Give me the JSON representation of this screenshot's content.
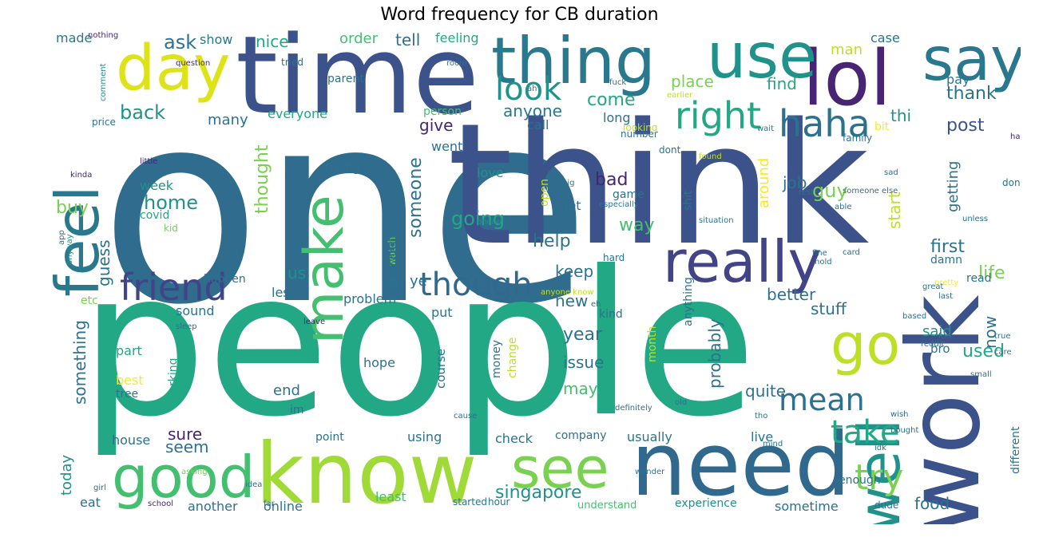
{
  "title": "Word frequency for CB duration",
  "palette": {
    "dark_purple": "#482475",
    "indigo": "#414487",
    "steel_blue": "#2f6c8e",
    "teal_blue": "#2a788e",
    "teal": "#21918c",
    "sea_green": "#22a884",
    "green": "#44bf70",
    "light_green": "#7ad151",
    "lime": "#bddf26",
    "yellow": "#fde725"
  },
  "words": [
    {
      "text": "one",
      "c": "#2f6c8e"
    },
    {
      "text": "people",
      "c": "#22a884"
    },
    {
      "text": "think",
      "c": "#3b528b"
    },
    {
      "text": "time",
      "c": "#3b528b"
    },
    {
      "text": "know",
      "c": "#a0da39"
    },
    {
      "text": "work",
      "c": "#3b528b"
    },
    {
      "text": "need",
      "c": "#31688e"
    },
    {
      "text": "thing",
      "c": "#2a788e"
    },
    {
      "text": "lol",
      "c": "#482475"
    },
    {
      "text": "use",
      "c": "#21918c"
    },
    {
      "text": "say",
      "c": "#2a788e"
    },
    {
      "text": "day",
      "c": "#dde318"
    },
    {
      "text": "feel",
      "c": "#2a788e"
    },
    {
      "text": "good",
      "c": "#44bf70"
    },
    {
      "text": "see",
      "c": "#7ad151"
    },
    {
      "text": "make",
      "c": "#44bf70"
    },
    {
      "text": "really",
      "c": "#414487"
    },
    {
      "text": "well",
      "c": "#21918c"
    },
    {
      "text": "go",
      "c": "#bddf26"
    },
    {
      "text": "haha",
      "c": "#2c728e"
    },
    {
      "text": "right",
      "c": "#22a884"
    },
    {
      "text": "friend",
      "c": "#414487"
    },
    {
      "text": "though",
      "c": "#31688e"
    },
    {
      "text": "look",
      "c": "#21918c"
    },
    {
      "text": "mean",
      "c": "#2c728e"
    },
    {
      "text": "take",
      "c": "#22a884"
    },
    {
      "text": "try",
      "c": "#7ad151"
    },
    {
      "text": "singapore",
      "c": "#21918c"
    },
    {
      "text": "back",
      "c": "#21918c"
    },
    {
      "text": "give",
      "c": "#482475"
    },
    {
      "text": "come",
      "c": "#22a884"
    },
    {
      "text": "anyone",
      "c": "#2a788e"
    },
    {
      "text": "place",
      "c": "#7ad151"
    },
    {
      "text": "find",
      "c": "#22a884"
    },
    {
      "text": "thank",
      "c": "#2c728e"
    },
    {
      "text": "post",
      "c": "#3b528b"
    },
    {
      "text": "ask",
      "c": "#2c728e"
    },
    {
      "text": "show",
      "c": "#2a788e"
    },
    {
      "text": "nice",
      "c": "#22a884"
    },
    {
      "text": "order",
      "c": "#44bf70"
    },
    {
      "text": "tell",
      "c": "#2c728e"
    },
    {
      "text": "feeling",
      "c": "#22a884"
    },
    {
      "text": "made",
      "c": "#2a788e"
    },
    {
      "text": "man",
      "c": "#bddf26"
    },
    {
      "text": "case",
      "c": "#2c728e"
    },
    {
      "text": "many",
      "c": "#2c728e"
    },
    {
      "text": "everyone",
      "c": "#22a884"
    },
    {
      "text": "person",
      "c": "#44bf70"
    },
    {
      "text": "call",
      "c": "#2c728e"
    },
    {
      "text": "long",
      "c": "#2c728e"
    },
    {
      "text": "thi",
      "c": "#21918c"
    },
    {
      "text": "pay",
      "c": "#2c728e"
    },
    {
      "text": "buy",
      "c": "#7ad151"
    },
    {
      "text": "home",
      "c": "#21918c"
    },
    {
      "text": "week",
      "c": "#21918c"
    },
    {
      "text": "thought",
      "c": "#7ad151"
    },
    {
      "text": "bad",
      "c": "#482475"
    },
    {
      "text": "guy",
      "c": "#7ad151"
    },
    {
      "text": "job",
      "c": "#2c728e"
    },
    {
      "text": "start",
      "c": "#bddf26"
    },
    {
      "text": "getting",
      "c": "#2c728e"
    },
    {
      "text": "going",
      "c": "#22a884"
    },
    {
      "text": "someone",
      "c": "#2c728e"
    },
    {
      "text": "around",
      "c": "#fde725"
    },
    {
      "text": "guess",
      "c": "#2c728e"
    },
    {
      "text": "help",
      "c": "#2c728e"
    },
    {
      "text": "way",
      "c": "#44bf70"
    },
    {
      "text": "first",
      "c": "#2c728e"
    },
    {
      "text": "life",
      "c": "#7ad151"
    },
    {
      "text": "something",
      "c": "#2c728e"
    },
    {
      "text": "us",
      "c": "#21918c"
    },
    {
      "text": "sg",
      "c": "#2c728e"
    },
    {
      "text": "ye",
      "c": "#2c728e"
    },
    {
      "text": "keep",
      "c": "#2c728e"
    },
    {
      "text": "better",
      "c": "#2c728e"
    },
    {
      "text": "new",
      "c": "#2c728e"
    },
    {
      "text": "stuff",
      "c": "#2c728e"
    },
    {
      "text": "now",
      "c": "#2c728e"
    },
    {
      "text": "said",
      "c": "#21918c"
    },
    {
      "text": "used",
      "c": "#22a884"
    },
    {
      "text": "probably",
      "c": "#2c728e"
    },
    {
      "text": "year",
      "c": "#2c728e"
    },
    {
      "text": "issue",
      "c": "#2c728e"
    },
    {
      "text": "may",
      "c": "#44bf70"
    },
    {
      "text": "quite",
      "c": "#2c728e"
    },
    {
      "text": "end",
      "c": "#2c728e"
    },
    {
      "text": "sure",
      "c": "#482475"
    },
    {
      "text": "seem",
      "c": "#2c728e"
    },
    {
      "text": "today",
      "c": "#21918c"
    },
    {
      "text": "food",
      "c": "#2c728e"
    },
    {
      "text": "sound",
      "c": "#2c728e"
    },
    {
      "text": "problem",
      "c": "#2c728e"
    },
    {
      "text": "hope",
      "c": "#2c728e"
    },
    {
      "text": "course",
      "c": "#2c728e"
    },
    {
      "text": "love",
      "c": "#21918c"
    },
    {
      "text": "trying",
      "c": "#2c728e"
    },
    {
      "text": "covid",
      "c": "#22a884"
    },
    {
      "text": "part",
      "c": "#22a884"
    },
    {
      "text": "best",
      "c": "#fde725"
    },
    {
      "text": "house",
      "c": "#2c728e"
    },
    {
      "text": "another",
      "c": "#2c728e"
    },
    {
      "text": "online",
      "c": "#2c728e"
    },
    {
      "text": "least",
      "c": "#44bf70"
    },
    {
      "text": "using",
      "c": "#2c728e"
    },
    {
      "text": "check",
      "c": "#2c728e"
    },
    {
      "text": "company",
      "c": "#2c728e"
    },
    {
      "text": "usually",
      "c": "#2c728e"
    },
    {
      "text": "live",
      "c": "#2c728e"
    },
    {
      "text": "enough",
      "c": "#2c728e"
    },
    {
      "text": "sometime",
      "c": "#2c728e"
    },
    {
      "text": "experience",
      "c": "#21918c"
    },
    {
      "text": "understand",
      "c": "#44bf70"
    },
    {
      "text": "eat",
      "c": "#2c728e"
    },
    {
      "text": "went",
      "c": "#2c728e"
    },
    {
      "text": "different",
      "c": "#2c728e"
    },
    {
      "text": "play",
      "c": "#2c728e"
    },
    {
      "text": "read",
      "c": "#2c728e"
    },
    {
      "text": "damn",
      "c": "#2c728e"
    },
    {
      "text": "bro",
      "c": "#2c728e"
    },
    {
      "text": "working",
      "c": "#22a884"
    },
    {
      "text": "money",
      "c": "#2c728e"
    },
    {
      "text": "change",
      "c": "#bddf26"
    },
    {
      "text": "month",
      "c": "#bddf26"
    },
    {
      "text": "anything",
      "c": "#2c728e"
    },
    {
      "text": "shit",
      "c": "#2c728e"
    },
    {
      "text": "game",
      "c": "#2c728e"
    },
    {
      "text": "let",
      "c": "#2c728e"
    },
    {
      "text": "open",
      "c": "#bddf26"
    },
    {
      "text": "etc",
      "c": "#7ad151"
    },
    {
      "text": "less",
      "c": "#2c728e"
    },
    {
      "text": "put",
      "c": "#2c728e"
    },
    {
      "text": "happen",
      "c": "#2c728e"
    },
    {
      "text": "cb",
      "c": "#2c728e"
    },
    {
      "text": "im",
      "c": "#2c728e"
    },
    {
      "text": "kid",
      "c": "#7ad151"
    },
    {
      "text": "tried",
      "c": "#2c728e"
    },
    {
      "text": "parent",
      "c": "#2c728e"
    },
    {
      "text": "price",
      "c": "#2c728e"
    },
    {
      "text": "bit",
      "c": "#fde725"
    },
    {
      "text": "family",
      "c": "#2c728e"
    },
    {
      "text": "dont",
      "c": "#2c728e"
    },
    {
      "text": "number",
      "c": "#2c728e"
    },
    {
      "text": "looking",
      "c": "#bddf26"
    },
    {
      "text": "done",
      "c": "#2c728e"
    },
    {
      "text": "watch",
      "c": "#7ad151"
    },
    {
      "text": "point",
      "c": "#2c728e"
    },
    {
      "text": "hard",
      "c": "#2c728e"
    },
    {
      "text": "hahaha",
      "c": "#482475"
    },
    {
      "text": "question",
      "c": "#482475"
    },
    {
      "text": "little",
      "c": "#482475"
    },
    {
      "text": "kinda",
      "c": "#482475"
    },
    {
      "text": "anyway",
      "c": "#21918c"
    },
    {
      "text": "big",
      "c": "#2c728e"
    },
    {
      "text": "found",
      "c": "#bddf26"
    },
    {
      "text": "room",
      "c": "#2c728e"
    },
    {
      "text": "able",
      "c": "#2c728e"
    },
    {
      "text": "pretty",
      "c": "#fde725"
    },
    {
      "text": "great",
      "c": "#2c728e"
    },
    {
      "text": "unless",
      "c": "#2c728e"
    },
    {
      "text": "sleep",
      "c": "#2c728e"
    },
    {
      "text": "leave",
      "c": "#482475"
    },
    {
      "text": "school",
      "c": "#482475"
    },
    {
      "text": "dude",
      "c": "#2c728e"
    },
    {
      "text": "hour",
      "c": "#2c728e"
    },
    {
      "text": "started",
      "c": "#2c728e"
    },
    {
      "text": "idea",
      "c": "#2c728e"
    },
    {
      "text": "asking",
      "c": "#7ad151"
    },
    {
      "text": "girl",
      "c": "#2c728e"
    },
    {
      "text": "everything",
      "c": "#2c728e"
    },
    {
      "text": "especially",
      "c": "#2c728e"
    },
    {
      "text": "situation",
      "c": "#2c728e"
    },
    {
      "text": "definitely",
      "c": "#2c728e"
    },
    {
      "text": "small",
      "c": "#2c728e"
    },
    {
      "text": "kind",
      "c": "#2c728e"
    },
    {
      "text": "old",
      "c": "#2c728e"
    },
    {
      "text": "fuck",
      "c": "#2c728e"
    },
    {
      "text": "fine",
      "c": "#2c728e"
    },
    {
      "text": "hold",
      "c": "#2c728e"
    },
    {
      "text": "reddit",
      "c": "#2c728e"
    },
    {
      "text": "comment",
      "c": "#21918c"
    },
    {
      "text": "nothing",
      "c": "#482475"
    },
    {
      "text": "phone",
      "c": "#21918c"
    },
    {
      "text": "tree",
      "c": "#2c728e"
    },
    {
      "text": "anyone know",
      "c": "#bddf26"
    },
    {
      "text": "ah",
      "c": "#2c728e"
    },
    {
      "text": "eh",
      "c": "#2c728e"
    },
    {
      "text": "app",
      "c": "#2c728e"
    },
    {
      "text": "sad",
      "c": "#2c728e"
    },
    {
      "text": "far",
      "c": "#2c728e"
    },
    {
      "text": "cause",
      "c": "#2c728e"
    },
    {
      "text": "tho",
      "c": "#2c728e"
    },
    {
      "text": "wait",
      "c": "#2c728e"
    },
    {
      "text": "rest",
      "c": "#2c728e"
    },
    {
      "text": "mind",
      "c": "#2c728e"
    },
    {
      "text": "idk",
      "c": "#2c728e"
    },
    {
      "text": "wonder",
      "c": "#2c728e"
    },
    {
      "text": "card",
      "c": "#2c728e"
    },
    {
      "text": "earlier",
      "c": "#bddf26"
    },
    {
      "text": "based",
      "c": "#2c728e"
    },
    {
      "text": "someone else",
      "c": "#2c728e"
    },
    {
      "text": "last",
      "c": "#2c728e"
    },
    {
      "text": "fun",
      "c": "#2c728e"
    },
    {
      "text": "wish",
      "c": "#2c728e"
    },
    {
      "text": "bought",
      "c": "#2c728e"
    },
    {
      "text": "true",
      "c": "#2c728e"
    },
    {
      "text": "care",
      "c": "#2c728e"
    }
  ]
}
